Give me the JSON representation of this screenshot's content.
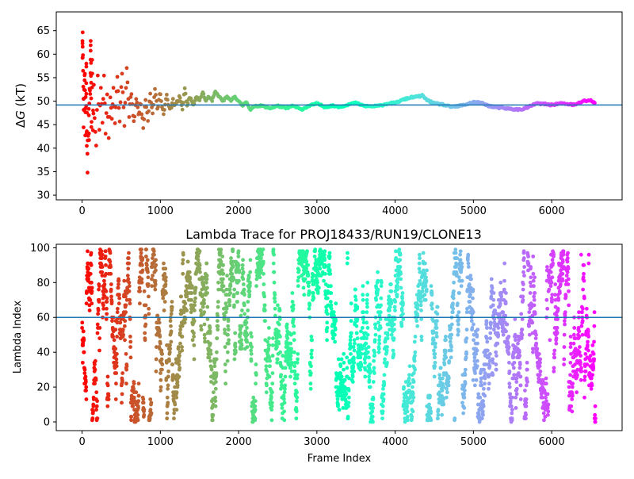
{
  "chart_data": [
    {
      "type": "scatter",
      "title": "",
      "xlabel": "",
      "ylabel_prefix": "Δ",
      "ylabel_var": "G",
      "ylabel_suffix": " (kT)",
      "xlim": [
        -330,
        6900
      ],
      "ylim": [
        29,
        69
      ],
      "xticks": [
        0,
        1000,
        2000,
        3000,
        4000,
        5000,
        6000
      ],
      "yticks": [
        30,
        35,
        40,
        45,
        50,
        55,
        60,
        65
      ],
      "reference_line": 49.2,
      "reference_color": "#1f77b4",
      "colormap": "rainbow (reversed, frame 0 red → final frame violet)",
      "x_max_frame": 6560,
      "trace_points": [
        [
          0,
          40
        ],
        [
          5,
          60
        ],
        [
          10,
          66
        ],
        [
          15,
          52
        ],
        [
          20,
          45
        ],
        [
          25,
          57
        ],
        [
          30,
          49
        ],
        [
          35,
          62
        ],
        [
          40,
          41
        ],
        [
          45,
          53
        ],
        [
          50,
          47
        ],
        [
          55,
          56
        ],
        [
          60,
          44
        ],
        [
          65,
          51
        ],
        [
          70,
          32
        ],
        [
          75,
          54
        ],
        [
          80,
          35
        ],
        [
          85,
          50
        ],
        [
          90,
          38
        ],
        [
          95,
          58
        ],
        [
          100,
          48
        ],
        [
          110,
          64
        ],
        [
          120,
          43
        ],
        [
          130,
          57
        ],
        [
          140,
          46
        ],
        [
          150,
          54
        ],
        [
          160,
          47
        ],
        [
          180,
          41
        ],
        [
          200,
          55
        ],
        [
          220,
          44
        ],
        [
          240,
          53
        ],
        [
          260,
          45
        ],
        [
          280,
          56
        ],
        [
          300,
          43
        ],
        [
          320,
          52
        ],
        [
          340,
          42
        ],
        [
          360,
          51
        ],
        [
          380,
          46
        ],
        [
          400,
          53
        ],
        [
          420,
          45
        ],
        [
          450,
          55
        ],
        [
          480,
          46
        ],
        [
          510,
          56
        ],
        [
          540,
          45
        ],
        [
          570,
          57
        ],
        [
          600,
          47
        ],
        [
          630,
          52
        ],
        [
          660,
          45
        ],
        [
          690,
          51
        ],
        [
          720,
          47
        ],
        [
          750,
          50
        ],
        [
          780,
          44
        ],
        [
          810,
          51
        ],
        [
          840,
          46
        ],
        [
          870,
          52
        ],
        [
          900,
          47
        ],
        [
          930,
          53
        ],
        [
          960,
          48
        ],
        [
          1000,
          52
        ],
        [
          1040,
          47
        ],
        [
          1080,
          51
        ],
        [
          1120,
          48
        ],
        [
          1160,
          50
        ],
        [
          1200,
          49
        ],
        [
          1240,
          51
        ],
        [
          1280,
          48
        ],
        [
          1310,
          53
        ],
        [
          1340,
          49
        ],
        [
          1380,
          51
        ],
        [
          1420,
          49
        ],
        [
          1460,
          51
        ],
        [
          1500,
          50
        ],
        [
          1540,
          52
        ],
        [
          1580,
          50
        ],
        [
          1620,
          51
        ],
        [
          1660,
          50
        ],
        [
          1700,
          52
        ],
        [
          1750,
          51
        ],
        [
          1800,
          50
        ],
        [
          1850,
          51
        ],
        [
          1900,
          50
        ],
        [
          1950,
          51
        ],
        [
          2000,
          50
        ],
        [
          2050,
          49
        ],
        [
          2100,
          50
        ],
        [
          2150,
          48
        ],
        [
          2200,
          49
        ],
        [
          2300,
          49
        ],
        [
          2400,
          48.5
        ],
        [
          2500,
          49
        ],
        [
          2600,
          48.5
        ],
        [
          2700,
          49
        ],
        [
          2800,
          48.2
        ],
        [
          2900,
          49
        ],
        [
          3000,
          49.5
        ],
        [
          3100,
          48.8
        ],
        [
          3200,
          49
        ],
        [
          3300,
          48.8
        ],
        [
          3400,
          49.3
        ],
        [
          3500,
          49.6
        ],
        [
          3600,
          49
        ],
        [
          3700,
          48.9
        ],
        [
          3800,
          49
        ],
        [
          3900,
          49.5
        ],
        [
          4000,
          49.6
        ],
        [
          4100,
          50.3
        ],
        [
          4200,
          50.8
        ],
        [
          4300,
          51
        ],
        [
          4350,
          51.2
        ],
        [
          4400,
          50.3
        ],
        [
          4500,
          49.5
        ],
        [
          4600,
          49.3
        ],
        [
          4700,
          48.8
        ],
        [
          4800,
          48.9
        ],
        [
          4900,
          49.3
        ],
        [
          5000,
          49.8
        ],
        [
          5100,
          49.6
        ],
        [
          5200,
          49
        ],
        [
          5300,
          48.6
        ],
        [
          5400,
          48.5
        ],
        [
          5500,
          48.3
        ],
        [
          5600,
          48.2
        ],
        [
          5700,
          48.7
        ],
        [
          5800,
          49.5
        ],
        [
          5900,
          49.4
        ],
        [
          6000,
          49.2
        ],
        [
          6100,
          49.5
        ],
        [
          6200,
          49.4
        ],
        [
          6300,
          49.2
        ],
        [
          6400,
          50
        ],
        [
          6500,
          50.2
        ],
        [
          6560,
          49.4
        ]
      ],
      "point_count": 640,
      "noise_seed": 11
    },
    {
      "type": "scatter",
      "title": "Lambda Trace for PROJ18433/RUN19/CLONE13",
      "xlabel": "Frame Index",
      "ylabel": "Lambda Index",
      "xlim": [
        -330,
        6900
      ],
      "ylim": [
        -5,
        102
      ],
      "xticks": [
        0,
        1000,
        2000,
        3000,
        4000,
        5000,
        6000
      ],
      "yticks": [
        0,
        20,
        40,
        60,
        80,
        100
      ],
      "reference_line": 60,
      "reference_color": "#1f77b4",
      "colormap": "rainbow (reversed, frame 0 red → final frame violet)",
      "x_max_frame": 6560,
      "lambda_min": 0,
      "lambda_max": 99,
      "point_count": 3400,
      "noise_seed": 7
    }
  ]
}
